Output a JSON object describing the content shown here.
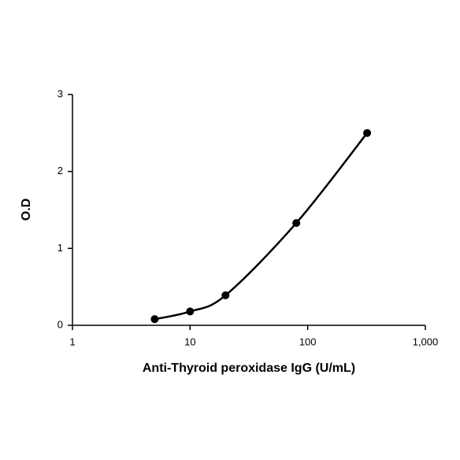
{
  "chart_data": {
    "type": "scatter",
    "x_label": "Anti-Thyroid peroxidase IgG (U/mL)",
    "y_label": "O.D",
    "x": [
      5,
      10,
      20,
      80,
      320
    ],
    "values": [
      0.08,
      0.18,
      0.39,
      1.33,
      2.5
    ],
    "color": "#000000",
    "xscale": "log",
    "xlim": [
      1,
      1000
    ],
    "xticks": [
      1,
      10,
      100,
      {
        "value": 1000,
        "label": "1,000"
      }
    ],
    "ylim": [
      0,
      3
    ],
    "yticks": [
      0,
      1,
      2,
      3
    ],
    "grid": false,
    "smooth_line": true
  }
}
